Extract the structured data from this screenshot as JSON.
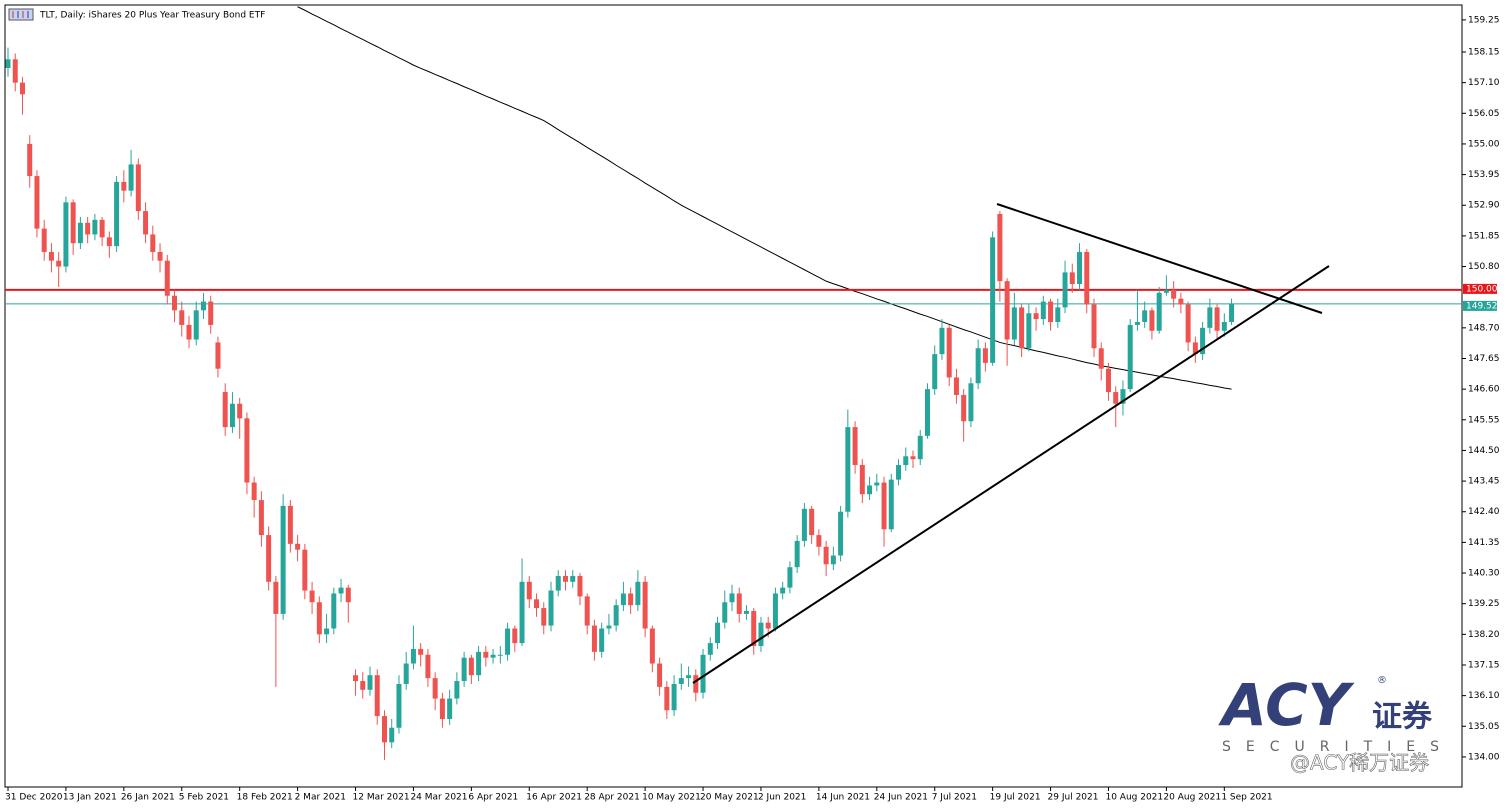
{
  "chart_data": {
    "type": "candlestick",
    "title": "TLT, Daily:  iShares 20 Plus Year Treasury Bond ETF",
    "categories": [
      "31 Dec 2020",
      null,
      null,
      null,
      null,
      null,
      null,
      null,
      "13 Jan 2021",
      null,
      null,
      null,
      null,
      null,
      null,
      null,
      "26 Jan 2021",
      null,
      null,
      null,
      null,
      null,
      null,
      null,
      "5 Feb 2021",
      null,
      null,
      null,
      null,
      null,
      null,
      null,
      "18 Feb 2021",
      null,
      null,
      null,
      null,
      null,
      null,
      null,
      "2 Mar 2021",
      null,
      null,
      null,
      null,
      null,
      null,
      null,
      "12 Mar 2021",
      null,
      null,
      null,
      null,
      null,
      null,
      null,
      "24 Mar 2021",
      null,
      null,
      null,
      null,
      null,
      null,
      null,
      "6 Apr 2021",
      null,
      null,
      null,
      null,
      null,
      null,
      null,
      "16 Apr 2021",
      null,
      null,
      null,
      null,
      null,
      null,
      null,
      "28 Apr 2021",
      null,
      null,
      null,
      null,
      null,
      null,
      null,
      "10 May 2021",
      null,
      null,
      null,
      null,
      null,
      null,
      null,
      "20 May 2021",
      null,
      null,
      null,
      null,
      null,
      null,
      null,
      "2 Jun 2021",
      null,
      null,
      null,
      null,
      null,
      null,
      null,
      "14 Jun 2021",
      null,
      null,
      null,
      null,
      null,
      null,
      null,
      "24 Jun 2021",
      null,
      null,
      null,
      null,
      null,
      null,
      null,
      "7 Jul 2021",
      null,
      null,
      null,
      null,
      null,
      null,
      null,
      "19 Jul 2021",
      null,
      null,
      null,
      null,
      null,
      null,
      null,
      "29 Jul 2021",
      null,
      null,
      null,
      null,
      null,
      null,
      null,
      "10 Aug 2021",
      null,
      null,
      null,
      null,
      null,
      null,
      null,
      "20 Aug 2021",
      null,
      null,
      null,
      null,
      null,
      null,
      null,
      "1 Sep 2021",
      null
    ],
    "open": [
      157.6,
      157.9,
      157.1,
      155.0,
      153.9,
      152.1,
      151.3,
      151.0,
      150.8,
      153.0,
      151.6,
      152.3,
      151.9,
      152.4,
      151.8,
      151.5,
      153.7,
      153.4,
      154.3,
      152.7,
      151.9,
      151.3,
      151.0,
      149.8,
      149.3,
      148.8,
      148.3,
      149.3,
      149.6,
      148.2,
      146.5,
      145.3,
      146.1,
      145.6,
      143.4,
      142.8,
      141.6,
      140.0,
      138.9,
      142.6,
      141.3,
      141.1,
      139.7,
      139.3,
      138.2,
      138.4,
      139.6,
      139.8,
      136.8,
      136.6,
      136.3,
      136.8,
      135.4,
      134.5,
      135.0,
      136.5,
      137.2,
      137.7,
      137.5,
      136.7,
      136.0,
      135.3,
      136.0,
      136.6,
      137.4,
      136.8,
      137.6,
      137.4,
      137.5,
      137.5,
      138.4,
      137.9,
      140.0,
      139.4,
      139.1,
      138.5,
      139.7,
      140.2,
      140.0,
      140.2,
      139.5,
      138.5,
      137.6,
      138.4,
      138.5,
      139.2,
      139.6,
      139.2,
      140.0,
      138.4,
      137.2,
      136.4,
      135.6,
      136.5,
      136.7,
      136.8,
      136.2,
      137.5,
      137.9,
      138.6,
      139.3,
      139.6,
      138.9,
      139.0,
      137.8,
      138.6,
      138.4,
      139.6,
      139.8,
      140.5,
      141.4,
      142.5,
      141.6,
      141.2,
      140.6,
      140.9,
      142.4,
      145.3,
      144.0,
      143.0,
      143.3,
      143.4,
      141.8,
      143.5,
      144.0,
      144.3,
      144.2,
      145.0,
      146.6,
      147.8,
      148.7,
      147.0,
      146.4,
      145.5,
      146.8,
      148.0,
      147.5,
      152.6,
      150.3,
      148.3,
      149.4,
      148.0,
      149.2,
      149.0,
      149.6,
      148.9,
      149.4,
      150.6,
      150.2,
      151.3,
      149.5,
      148.0,
      147.3,
      146.5,
      146.1,
      146.6,
      148.8,
      148.9,
      149.3,
      148.6,
      149.9,
      150.0,
      149.7,
      149.5,
      148.2,
      147.8,
      148.7,
      149.4,
      148.6,
      148.9
    ],
    "high": [
      158.3,
      158.1,
      157.3,
      155.3,
      154.1,
      152.4,
      151.6,
      151.3,
      153.2,
      153.1,
      152.5,
      152.5,
      152.6,
      152.5,
      152.0,
      153.9,
      154.1,
      154.8,
      154.5,
      153.0,
      152.2,
      151.6,
      151.2,
      150.0,
      149.6,
      149.1,
      149.6,
      149.9,
      149.8,
      148.4,
      146.8,
      146.5,
      146.3,
      145.8,
      143.6,
      143.1,
      141.9,
      140.2,
      143.0,
      142.8,
      141.6,
      141.3,
      140.0,
      139.5,
      138.9,
      139.8,
      140.1,
      139.9,
      137.0,
      136.9,
      137.1,
      137.0,
      135.6,
      135.3,
      136.8,
      137.6,
      138.5,
      137.9,
      137.7,
      136.9,
      136.2,
      136.3,
      136.9,
      137.6,
      137.5,
      137.8,
      137.8,
      137.7,
      137.8,
      138.6,
      138.5,
      140.8,
      140.2,
      139.6,
      139.3,
      140.0,
      140.4,
      140.4,
      140.4,
      140.3,
      139.6,
      138.7,
      138.6,
      138.9,
      139.4,
      140.0,
      139.8,
      140.4,
      140.2,
      138.5,
      137.4,
      136.6,
      136.8,
      137.2,
      137.1,
      137.0,
      137.7,
      138.1,
      138.8,
      139.7,
      139.9,
      139.8,
      139.2,
      139.1,
      138.8,
      138.8,
      139.8,
      140.0,
      140.7,
      141.6,
      142.7,
      142.6,
      141.8,
      141.4,
      141.2,
      142.6,
      145.9,
      145.5,
      144.2,
      143.6,
      143.7,
      143.6,
      143.7,
      144.2,
      144.6,
      144.5,
      145.2,
      146.8,
      148.1,
      149.0,
      148.8,
      147.3,
      146.6,
      147.0,
      148.3,
      148.2,
      152.0,
      152.7,
      150.4,
      149.9,
      149.5,
      149.5,
      149.4,
      149.8,
      149.7,
      149.7,
      151.0,
      150.9,
      151.6,
      151.4,
      149.7,
      148.2,
      147.5,
      146.7,
      146.9,
      149.0,
      150.0,
      149.6,
      149.4,
      150.1,
      150.5,
      150.3,
      149.9,
      149.6,
      148.4,
      148.9,
      149.7,
      149.5,
      149.2,
      149.7
    ],
    "low": [
      157.3,
      156.8,
      156.0,
      153.5,
      151.8,
      151.0,
      150.6,
      150.1,
      150.6,
      151.2,
      151.4,
      151.6,
      151.7,
      151.5,
      151.1,
      151.3,
      153.0,
      153.2,
      152.4,
      151.6,
      151.0,
      150.6,
      149.5,
      148.9,
      148.4,
      148.0,
      148.1,
      149.0,
      148.5,
      147.0,
      145.0,
      145.1,
      144.9,
      143.0,
      142.2,
      141.2,
      139.7,
      136.4,
      138.7,
      141.0,
      140.7,
      139.4,
      138.9,
      137.9,
      137.9,
      138.2,
      139.3,
      138.6,
      136.1,
      136.0,
      136.1,
      135.1,
      133.9,
      134.3,
      134.8,
      136.3,
      137.0,
      137.1,
      136.4,
      135.6,
      135.0,
      135.1,
      135.8,
      136.4,
      136.5,
      136.6,
      137.1,
      137.2,
      137.2,
      137.3,
      137.6,
      137.8,
      139.1,
      138.8,
      138.2,
      138.3,
      139.5,
      139.7,
      139.8,
      139.2,
      138.2,
      137.3,
      137.4,
      138.2,
      138.3,
      139.0,
      138.9,
      139.0,
      138.1,
      136.9,
      136.1,
      135.3,
      135.4,
      136.3,
      136.4,
      135.9,
      136.0,
      137.3,
      137.7,
      138.4,
      139.0,
      138.6,
      138.7,
      137.5,
      137.6,
      138.1,
      138.3,
      139.4,
      139.6,
      140.3,
      141.2,
      141.3,
      140.9,
      140.2,
      140.4,
      140.7,
      142.2,
      143.7,
      142.7,
      142.8,
      143.1,
      141.2,
      141.7,
      143.3,
      143.8,
      143.9,
      144.0,
      144.9,
      146.4,
      147.6,
      146.7,
      146.1,
      144.8,
      145.3,
      146.6,
      147.2,
      147.4,
      149.6,
      147.4,
      148.1,
      147.7,
      147.9,
      148.6,
      148.8,
      148.6,
      148.7,
      149.2,
      149.9,
      150.0,
      149.2,
      147.7,
      146.9,
      146.2,
      145.3,
      145.7,
      146.5,
      148.6,
      148.7,
      148.3,
      148.5,
      149.8,
      149.4,
      149.2,
      147.9,
      147.5,
      147.6,
      148.5,
      148.3,
      148.4,
      148.8
    ],
    "close": [
      157.9,
      157.1,
      156.7,
      153.9,
      152.1,
      151.3,
      151.0,
      150.8,
      153.0,
      151.6,
      152.3,
      151.9,
      152.4,
      151.8,
      151.5,
      153.7,
      153.4,
      154.3,
      152.7,
      151.9,
      151.3,
      151.0,
      149.8,
      149.3,
      148.8,
      148.3,
      149.3,
      149.6,
      148.8,
      147.3,
      145.3,
      146.1,
      145.6,
      143.4,
      142.8,
      141.6,
      140.0,
      138.9,
      142.6,
      141.3,
      141.1,
      139.7,
      139.3,
      138.2,
      138.4,
      139.6,
      139.8,
      139.3,
      136.6,
      136.3,
      136.8,
      135.4,
      134.5,
      135.0,
      136.5,
      137.2,
      137.7,
      137.5,
      136.7,
      136.0,
      135.3,
      136.0,
      136.6,
      137.4,
      136.8,
      137.6,
      137.4,
      137.5,
      137.5,
      138.4,
      137.9,
      140.0,
      139.4,
      139.1,
      138.5,
      139.7,
      140.2,
      140.0,
      140.2,
      139.5,
      138.5,
      137.6,
      138.4,
      138.5,
      139.2,
      139.6,
      139.2,
      140.0,
      138.4,
      137.2,
      136.4,
      135.6,
      136.5,
      136.7,
      136.8,
      136.2,
      137.5,
      137.9,
      138.6,
      139.3,
      139.6,
      138.9,
      139.0,
      137.8,
      138.6,
      138.4,
      139.6,
      139.8,
      140.5,
      141.4,
      142.5,
      141.6,
      141.2,
      140.6,
      140.9,
      142.4,
      145.3,
      144.0,
      143.0,
      143.3,
      143.4,
      141.8,
      143.5,
      144.0,
      144.3,
      144.2,
      145.0,
      146.6,
      147.8,
      148.7,
      147.0,
      146.4,
      145.5,
      146.8,
      148.0,
      147.5,
      151.8,
      150.3,
      148.3,
      149.4,
      148.0,
      149.2,
      149.0,
      149.6,
      148.9,
      149.4,
      150.6,
      150.2,
      151.3,
      149.5,
      148.0,
      147.3,
      146.5,
      146.1,
      146.6,
      148.8,
      148.9,
      149.3,
      148.6,
      149.9,
      150.0,
      149.7,
      149.5,
      148.2,
      147.8,
      148.7,
      149.4,
      148.6,
      148.9,
      149.52
    ],
    "up_color": "#26a69a",
    "down_color": "#ef5350",
    "moving_average": {
      "color": "#000000",
      "values": [
        null,
        null,
        null,
        null,
        null,
        null,
        null,
        null,
        null,
        null,
        null,
        null,
        null,
        null,
        null,
        null,
        null,
        null,
        null,
        null,
        null,
        null,
        null,
        null,
        null,
        null,
        null,
        null,
        null,
        null,
        null,
        null,
        null,
        null,
        null,
        null,
        null,
        null,
        null,
        null,
        159.7,
        159.58,
        159.45,
        159.33,
        159.2,
        159.08,
        158.95,
        158.83,
        158.7,
        158.58,
        158.45,
        158.33,
        158.2,
        158.08,
        157.95,
        157.83,
        157.7,
        157.59,
        157.49,
        157.38,
        157.28,
        157.17,
        157.07,
        156.96,
        156.86,
        156.75,
        156.64,
        156.54,
        156.43,
        156.33,
        156.22,
        156.12,
        156.01,
        155.91,
        155.8,
        155.65,
        155.49,
        155.34,
        155.19,
        155.04,
        154.88,
        154.73,
        154.58,
        154.43,
        154.27,
        154.12,
        153.97,
        153.82,
        153.66,
        153.51,
        153.36,
        153.21,
        153.05,
        152.9,
        152.77,
        152.64,
        152.51,
        152.38,
        152.25,
        152.12,
        151.99,
        151.86,
        151.73,
        151.6,
        151.47,
        151.34,
        151.21,
        151.08,
        150.95,
        150.82,
        150.69,
        150.56,
        150.43,
        150.3,
        150.21,
        150.13,
        150.04,
        149.95,
        149.87,
        149.78,
        149.69,
        149.61,
        149.52,
        149.43,
        149.35,
        149.26,
        149.17,
        149.09,
        149.0,
        148.91,
        148.82,
        148.73,
        148.64,
        148.56,
        148.47,
        148.38,
        148.29,
        148.2,
        148.14,
        148.09,
        148.03,
        147.97,
        147.91,
        147.86,
        147.8,
        147.74,
        147.69,
        147.63,
        147.57,
        147.51,
        147.46,
        147.4,
        147.36,
        147.31,
        147.27,
        147.22,
        147.18,
        147.13,
        147.09,
        147.04,
        147.0,
        146.96,
        146.91,
        146.87,
        146.82,
        146.78,
        146.73,
        146.69,
        146.64,
        146.6
      ]
    },
    "hlines": [
      {
        "value": 150.0,
        "label": "150.00",
        "color": "#e8151b"
      },
      {
        "value": 149.52,
        "label": "149.52",
        "color": "#26a69a"
      }
    ],
    "ylim": [
      132.97,
      159.76
    ],
    "yticks": [
      159.25,
      158.15,
      {
        "value": 157.1,
        "label": "157.10"
      },
      156.05,
      {
        "value": 155.0,
        "label": "155.00"
      },
      153.95,
      {
        "value": 152.9,
        "label": "152.90"
      },
      151.85,
      {
        "value": 150.8,
        "label": "150.80"
      },
      {
        "value": 148.7,
        "label": "148.70"
      },
      147.65,
      {
        "value": 146.6,
        "label": "146.60"
      },
      145.55,
      {
        "value": 144.5,
        "label": "144.50"
      },
      143.45,
      {
        "value": 142.4,
        "label": "142.40"
      },
      141.35,
      {
        "value": 140.3,
        "label": "140.30"
      },
      139.25,
      {
        "value": 138.2,
        "label": "138.20"
      },
      137.15,
      {
        "value": 136.1,
        "label": "136.10"
      },
      135.05,
      {
        "value": 134.0,
        "label": "134.00"
      }
    ],
    "grid": false
  },
  "watermark": {
    "brand": "ACY",
    "registered": "®",
    "cn": "证券",
    "sub": "SECURITIES",
    "handle": "@ACY稀万证券"
  }
}
